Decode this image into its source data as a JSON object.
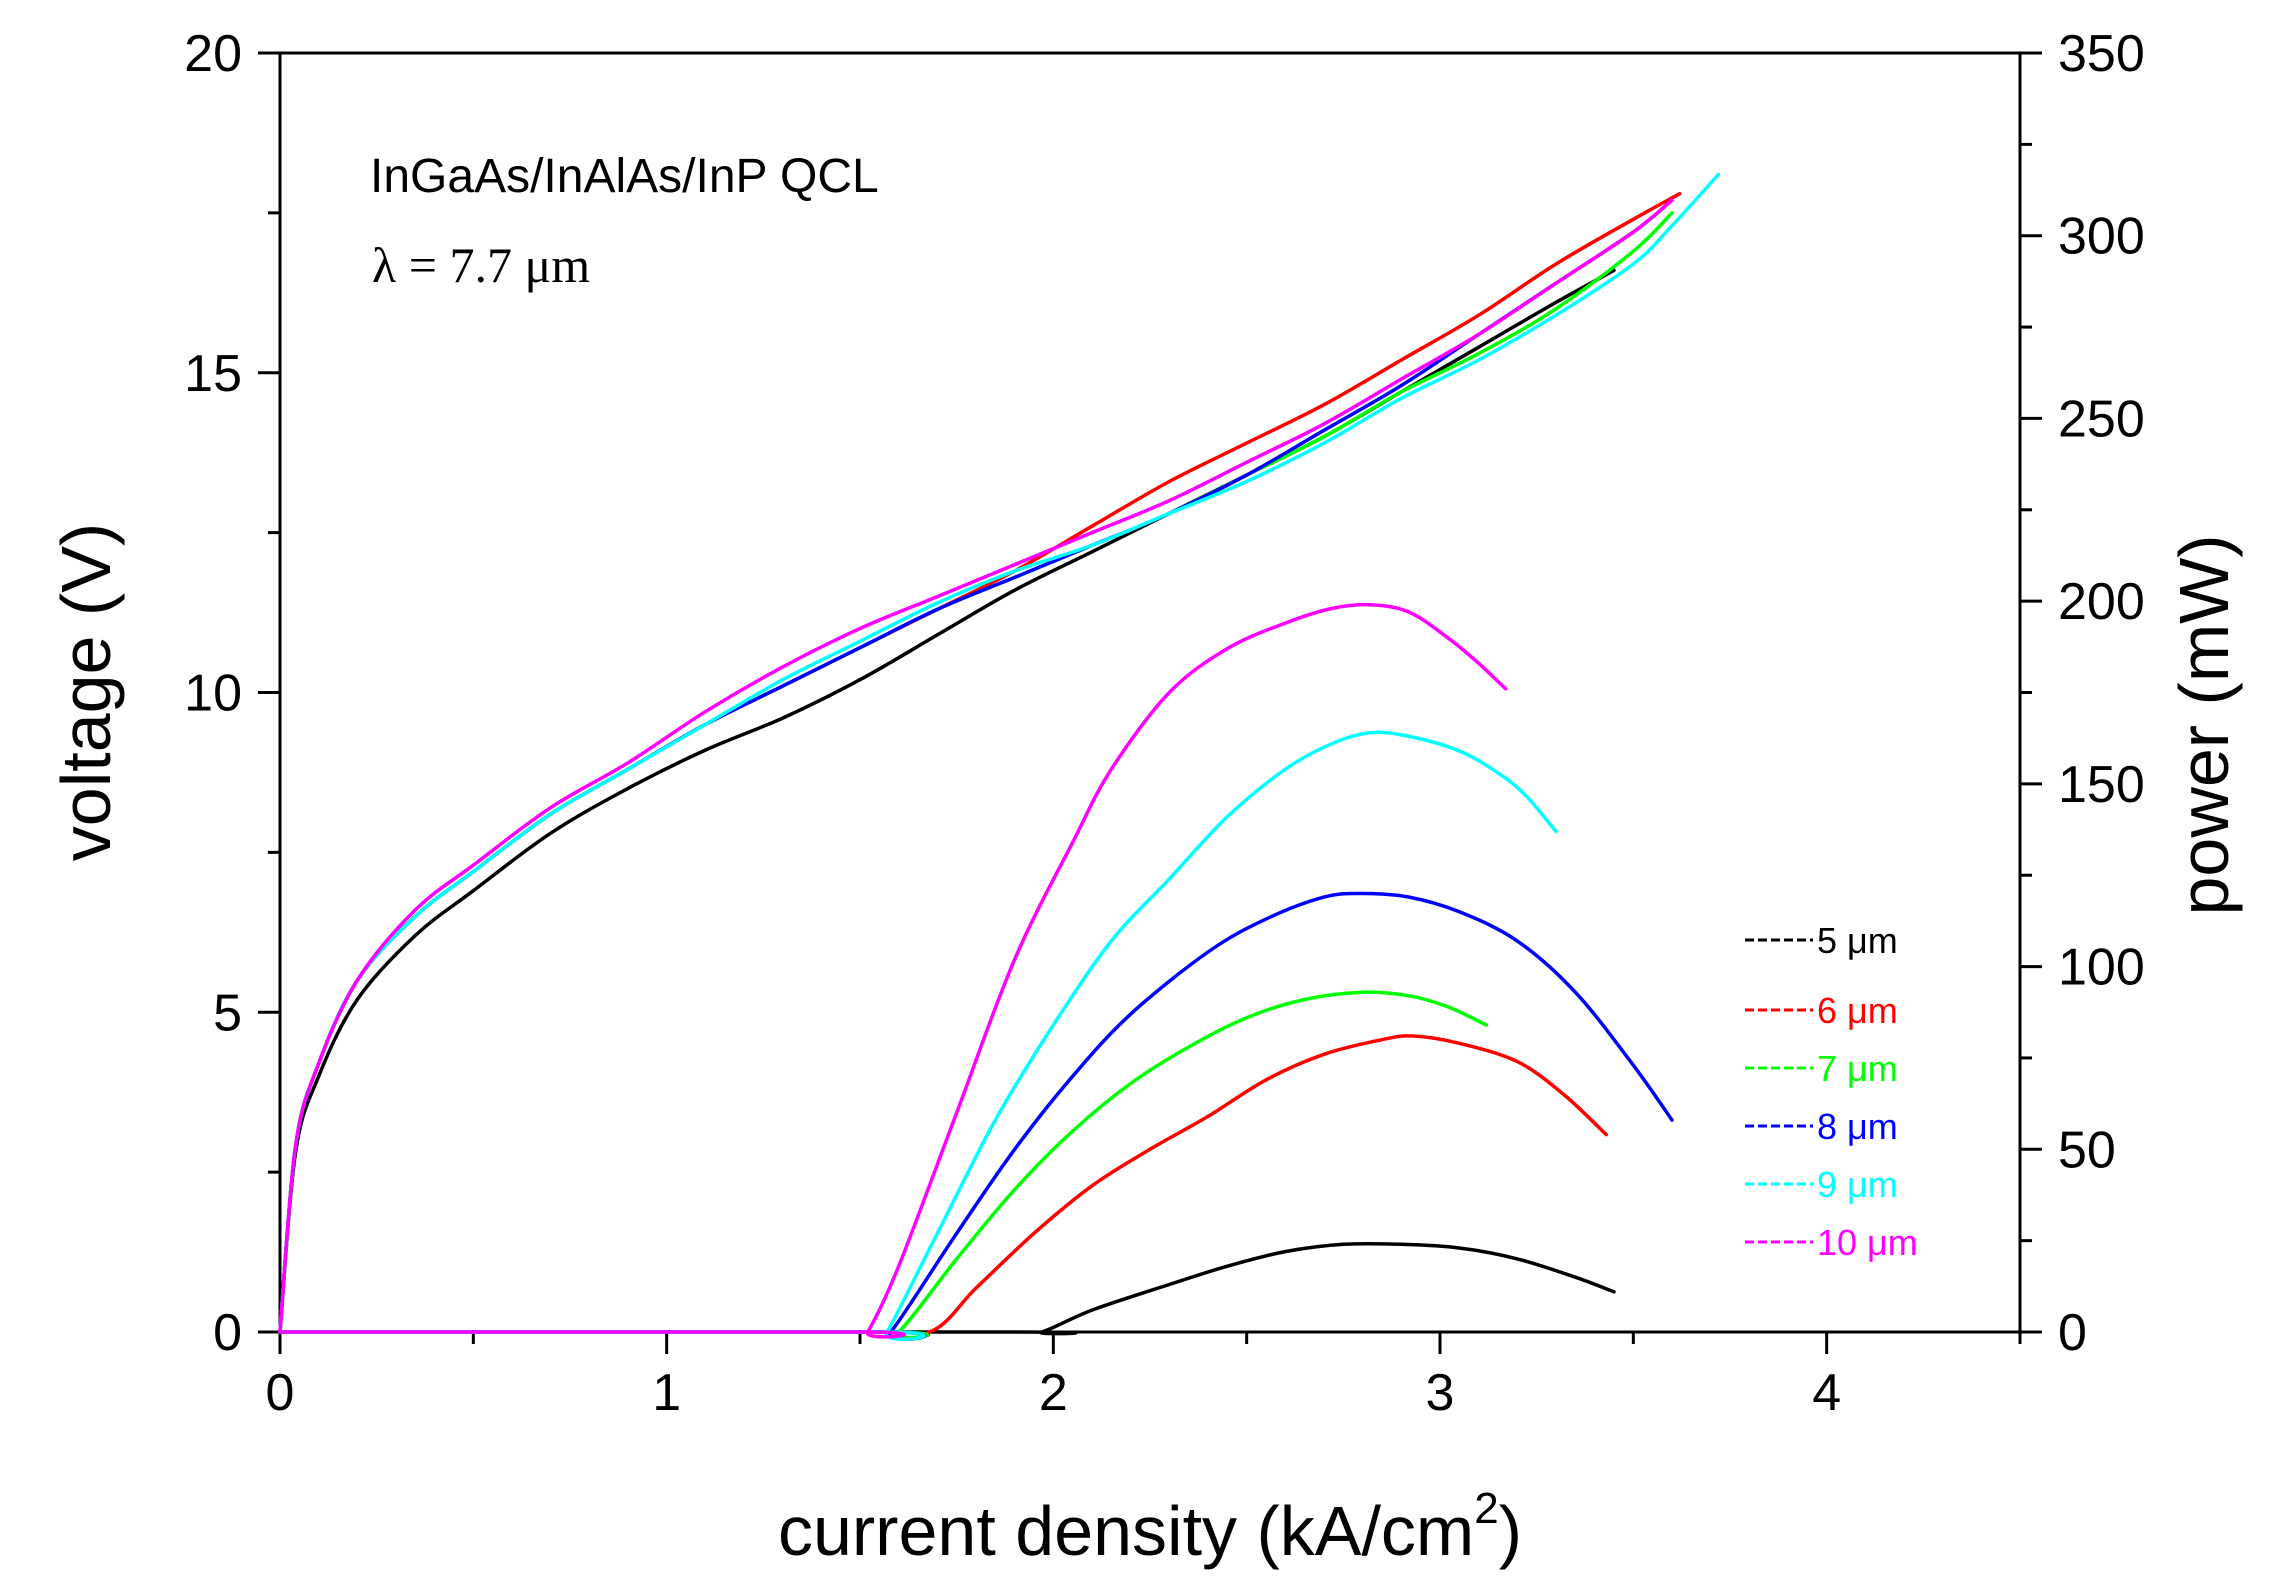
{
  "chart_data": {
    "type": "line",
    "title": "",
    "annotations": [
      "InGaAs/InAlAs/InP QCL",
      "λ = 7.7 μm"
    ],
    "xlabel": "current density (kA/cm",
    "xlabel_superscript": "2",
    "xlabel_close": ")",
    "ylabel_left": "voltage (V)",
    "ylabel_right": "power (mW)",
    "xlim": [
      0,
      4.5
    ],
    "ylim_left": [
      0,
      20
    ],
    "ylim_right": [
      0,
      350
    ],
    "xticks": [
      0,
      1,
      2,
      3,
      4
    ],
    "yticks_left": [
      0,
      5,
      10,
      15,
      20
    ],
    "yticks_right": [
      0,
      50,
      100,
      150,
      200,
      250,
      300,
      350
    ],
    "legend_position": "right",
    "series": [
      {
        "name": "5 μm",
        "color": "#000000",
        "voltage": [
          [
            0,
            0
          ],
          [
            0.04,
            2.8
          ],
          [
            0.1,
            4
          ],
          [
            0.2,
            5.2
          ],
          [
            0.35,
            6.2
          ],
          [
            0.5,
            6.9
          ],
          [
            0.7,
            7.8
          ],
          [
            0.9,
            8.5
          ],
          [
            1.1,
            9.1
          ],
          [
            1.3,
            9.6
          ],
          [
            1.5,
            10.2
          ],
          [
            1.7,
            10.9
          ],
          [
            1.9,
            11.6
          ],
          [
            2.1,
            12.2
          ],
          [
            2.3,
            12.8
          ],
          [
            2.5,
            13.4
          ],
          [
            2.7,
            14
          ],
          [
            2.9,
            14.7
          ],
          [
            3.1,
            15.4
          ],
          [
            3.3,
            16.1
          ],
          [
            3.45,
            16.6
          ]
        ],
        "power": [
          [
            0,
            0
          ],
          [
            1.9,
            0
          ],
          [
            1.97,
            0
          ],
          [
            2.1,
            6
          ],
          [
            2.3,
            13
          ],
          [
            2.45,
            18
          ],
          [
            2.6,
            22
          ],
          [
            2.75,
            24
          ],
          [
            2.9,
            24
          ],
          [
            3.05,
            23
          ],
          [
            3.2,
            20
          ],
          [
            3.35,
            15
          ],
          [
            3.45,
            11
          ]
        ]
      },
      {
        "name": "6 μm",
        "color": "#ff0000",
        "voltage": [
          [
            0,
            0
          ],
          [
            0.04,
            2.9
          ],
          [
            0.1,
            4.2
          ],
          [
            0.2,
            5.5
          ],
          [
            0.35,
            6.5
          ],
          [
            0.5,
            7.2
          ],
          [
            0.7,
            8.1
          ],
          [
            0.9,
            8.8
          ],
          [
            1.1,
            9.5
          ],
          [
            1.3,
            10.1
          ],
          [
            1.5,
            10.7
          ],
          [
            1.7,
            11.3
          ],
          [
            1.9,
            11.9
          ],
          [
            2.1,
            12.6
          ],
          [
            2.3,
            13.3
          ],
          [
            2.5,
            13.9
          ],
          [
            2.7,
            14.5
          ],
          [
            2.9,
            15.2
          ],
          [
            3.1,
            15.9
          ],
          [
            3.3,
            16.7
          ],
          [
            3.5,
            17.4
          ],
          [
            3.62,
            17.8
          ]
        ],
        "power": [
          [
            0,
            0
          ],
          [
            1.5,
            0
          ],
          [
            1.68,
            0
          ],
          [
            1.8,
            12
          ],
          [
            1.95,
            27
          ],
          [
            2.1,
            40
          ],
          [
            2.25,
            50
          ],
          [
            2.4,
            59
          ],
          [
            2.55,
            69
          ],
          [
            2.7,
            76
          ],
          [
            2.85,
            80
          ],
          [
            2.93,
            81
          ],
          [
            3.05,
            79
          ],
          [
            3.2,
            74
          ],
          [
            3.32,
            65
          ],
          [
            3.43,
            54
          ]
        ]
      },
      {
        "name": "7 μm",
        "color": "#00ff00",
        "voltage": [
          [
            0,
            0
          ],
          [
            0.04,
            2.9
          ],
          [
            0.1,
            4.2
          ],
          [
            0.2,
            5.5
          ],
          [
            0.35,
            6.5
          ],
          [
            0.5,
            7.2
          ],
          [
            0.7,
            8.1
          ],
          [
            0.9,
            8.8
          ],
          [
            1.1,
            9.5
          ],
          [
            1.3,
            10.1
          ],
          [
            1.5,
            10.7
          ],
          [
            1.7,
            11.3
          ],
          [
            1.9,
            11.8
          ],
          [
            2.1,
            12.3
          ],
          [
            2.3,
            12.8
          ],
          [
            2.5,
            13.4
          ],
          [
            2.7,
            14
          ],
          [
            2.9,
            14.7
          ],
          [
            3.1,
            15.3
          ],
          [
            3.3,
            16
          ],
          [
            3.5,
            16.9
          ],
          [
            3.6,
            17.5
          ]
        ],
        "power": [
          [
            0,
            0
          ],
          [
            1.55,
            0
          ],
          [
            1.6,
            0
          ],
          [
            1.75,
            20
          ],
          [
            1.9,
            39
          ],
          [
            2.05,
            55
          ],
          [
            2.2,
            68
          ],
          [
            2.35,
            78
          ],
          [
            2.5,
            86
          ],
          [
            2.65,
            91
          ],
          [
            2.8,
            93
          ],
          [
            2.92,
            92
          ],
          [
            3.02,
            89
          ],
          [
            3.12,
            84
          ]
        ]
      },
      {
        "name": "8 μm",
        "color": "#0000ff",
        "voltage": [
          [
            0,
            0
          ],
          [
            0.04,
            2.9
          ],
          [
            0.1,
            4.2
          ],
          [
            0.2,
            5.5
          ],
          [
            0.35,
            6.5
          ],
          [
            0.5,
            7.2
          ],
          [
            0.7,
            8.1
          ],
          [
            0.9,
            8.8
          ],
          [
            1.1,
            9.5
          ],
          [
            1.3,
            10.1
          ],
          [
            1.5,
            10.7
          ],
          [
            1.7,
            11.3
          ],
          [
            1.9,
            11.8
          ],
          [
            2.1,
            12.3
          ],
          [
            2.3,
            12.8
          ],
          [
            2.5,
            13.4
          ],
          [
            2.7,
            14.1
          ],
          [
            2.9,
            14.8
          ],
          [
            3.1,
            15.6
          ],
          [
            3.3,
            16.4
          ],
          [
            3.5,
            17.2
          ],
          [
            3.6,
            17.7
          ]
        ],
        "power": [
          [
            0,
            0
          ],
          [
            1.55,
            0
          ],
          [
            1.58,
            0
          ],
          [
            1.75,
            27
          ],
          [
            1.9,
            50
          ],
          [
            2.05,
            70
          ],
          [
            2.2,
            87
          ],
          [
            2.4,
            104
          ],
          [
            2.55,
            113
          ],
          [
            2.7,
            119
          ],
          [
            2.8,
            120
          ],
          [
            2.92,
            119
          ],
          [
            3.05,
            115
          ],
          [
            3.2,
            107
          ],
          [
            3.35,
            93
          ],
          [
            3.5,
            73
          ],
          [
            3.6,
            58
          ]
        ]
      },
      {
        "name": "9 μm",
        "color": "#00ffff",
        "voltage": [
          [
            0,
            0
          ],
          [
            0.04,
            2.9
          ],
          [
            0.1,
            4.2
          ],
          [
            0.2,
            5.5
          ],
          [
            0.35,
            6.5
          ],
          [
            0.5,
            7.2
          ],
          [
            0.7,
            8.1
          ],
          [
            0.9,
            8.8
          ],
          [
            1.1,
            9.5
          ],
          [
            1.3,
            10.2
          ],
          [
            1.5,
            10.8
          ],
          [
            1.7,
            11.4
          ],
          [
            1.9,
            11.9
          ],
          [
            2.1,
            12.3
          ],
          [
            2.3,
            12.8
          ],
          [
            2.5,
            13.3
          ],
          [
            2.7,
            13.9
          ],
          [
            2.9,
            14.6
          ],
          [
            3.1,
            15.2
          ],
          [
            3.3,
            15.9
          ],
          [
            3.5,
            16.7
          ],
          [
            3.6,
            17.3
          ],
          [
            3.72,
            18.1
          ]
        ],
        "power": [
          [
            0,
            0
          ],
          [
            1.55,
            0
          ],
          [
            1.57,
            0
          ],
          [
            1.7,
            27
          ],
          [
            1.85,
            58
          ],
          [
            2.0,
            84
          ],
          [
            2.15,
            107
          ],
          [
            2.3,
            124
          ],
          [
            2.45,
            141
          ],
          [
            2.6,
            154
          ],
          [
            2.72,
            161
          ],
          [
            2.82,
            164
          ],
          [
            2.92,
            163
          ],
          [
            3.05,
            159
          ],
          [
            3.15,
            153
          ],
          [
            3.22,
            147
          ],
          [
            3.3,
            137
          ]
        ]
      },
      {
        "name": "10 μm",
        "color": "#ff00ff",
        "voltage": [
          [
            0,
            0
          ],
          [
            0.04,
            2.9
          ],
          [
            0.1,
            4.2
          ],
          [
            0.2,
            5.5
          ],
          [
            0.35,
            6.6
          ],
          [
            0.5,
            7.3
          ],
          [
            0.7,
            8.2
          ],
          [
            0.9,
            8.9
          ],
          [
            1.1,
            9.7
          ],
          [
            1.3,
            10.4
          ],
          [
            1.5,
            11
          ],
          [
            1.7,
            11.5
          ],
          [
            1.9,
            12
          ],
          [
            2.1,
            12.5
          ],
          [
            2.3,
            13
          ],
          [
            2.5,
            13.6
          ],
          [
            2.7,
            14.2
          ],
          [
            2.9,
            14.9
          ],
          [
            3.1,
            15.6
          ],
          [
            3.3,
            16.4
          ],
          [
            3.5,
            17.2
          ],
          [
            3.6,
            17.7
          ]
        ],
        "power": [
          [
            0,
            0
          ],
          [
            1.5,
            0
          ],
          [
            1.52,
            0
          ],
          [
            1.6,
            18
          ],
          [
            1.75,
            60
          ],
          [
            1.9,
            102
          ],
          [
            2.05,
            134
          ],
          [
            2.15,
            154
          ],
          [
            2.3,
            175
          ],
          [
            2.45,
            187
          ],
          [
            2.6,
            194
          ],
          [
            2.72,
            198
          ],
          [
            2.82,
            199
          ],
          [
            2.92,
            197
          ],
          [
            3.02,
            190
          ],
          [
            3.1,
            183
          ],
          [
            3.17,
            176
          ]
        ]
      }
    ]
  }
}
